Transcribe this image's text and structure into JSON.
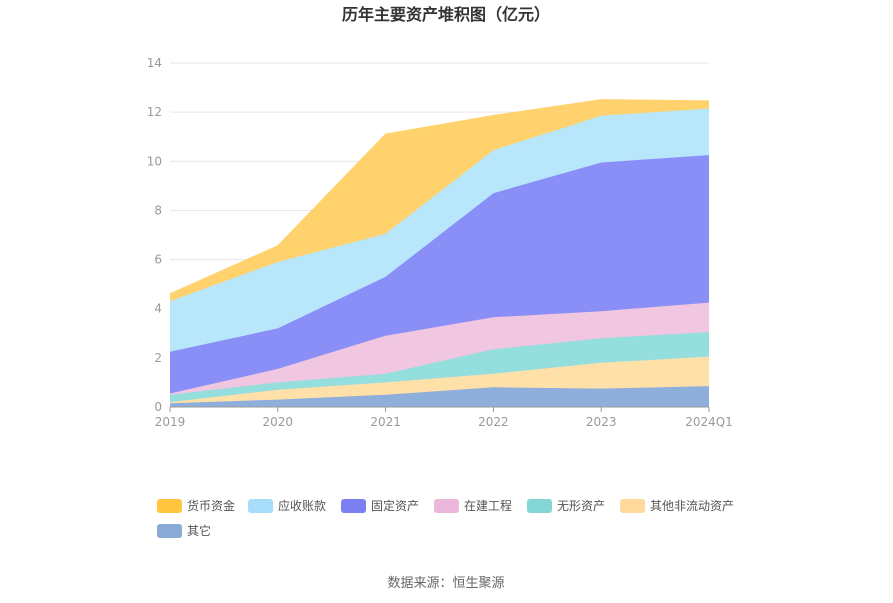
{
  "chart_data": {
    "type": "area",
    "title": "历年主要资产堆积图（亿元）",
    "x": [
      "2019",
      "2020",
      "2021",
      "2022",
      "2023",
      "2024Q1"
    ],
    "ylim": [
      0,
      14
    ],
    "yticks": [
      0,
      2,
      4,
      6,
      8,
      10,
      12,
      14
    ],
    "grid": true,
    "legend_position": "bottom",
    "series": [
      {
        "name": "其它",
        "color": "#8EAFDB",
        "values": [
          0.15,
          0.3,
          0.5,
          0.8,
          0.75,
          0.85
        ]
      },
      {
        "name": "其他非流动资产",
        "color": "#FFE0A8",
        "values": [
          0.05,
          0.4,
          0.5,
          0.55,
          1.05,
          1.2
        ]
      },
      {
        "name": "无形资产",
        "color": "#95DEDE",
        "values": [
          0.3,
          0.3,
          0.35,
          1.0,
          1.0,
          1.0
        ]
      },
      {
        "name": "在建工程",
        "color": "#F0C6E0",
        "values": [
          0.05,
          0.55,
          1.55,
          1.3,
          1.1,
          1.2
        ]
      },
      {
        "name": "固定资产",
        "color": "#8A8FF7",
        "values": [
          1.7,
          1.65,
          2.4,
          5.05,
          6.05,
          6.0
        ]
      },
      {
        "name": "应收账款",
        "color": "#B8E6FA",
        "values": [
          2.05,
          2.7,
          1.75,
          1.75,
          1.9,
          1.9
        ]
      },
      {
        "name": "货币资金",
        "color": "#FFD26E",
        "values": [
          0.3,
          0.65,
          4.05,
          1.4,
          0.65,
          0.3
        ]
      }
    ],
    "legend_order": [
      "货币资金",
      "应收账款",
      "固定资产",
      "在建工程",
      "无形资产",
      "其他非流动资产",
      "其它"
    ],
    "legend_colors": {
      "货币资金": "#FFC53D",
      "应收账款": "#A6DEFA",
      "固定资产": "#7B80F2",
      "在建工程": "#EDB6DB",
      "无形资产": "#85D7D7",
      "其他非流动资产": "#FFD99B",
      "其它": "#8AAAD6"
    }
  },
  "footer": {
    "source": "数据来源：恒生聚源"
  }
}
